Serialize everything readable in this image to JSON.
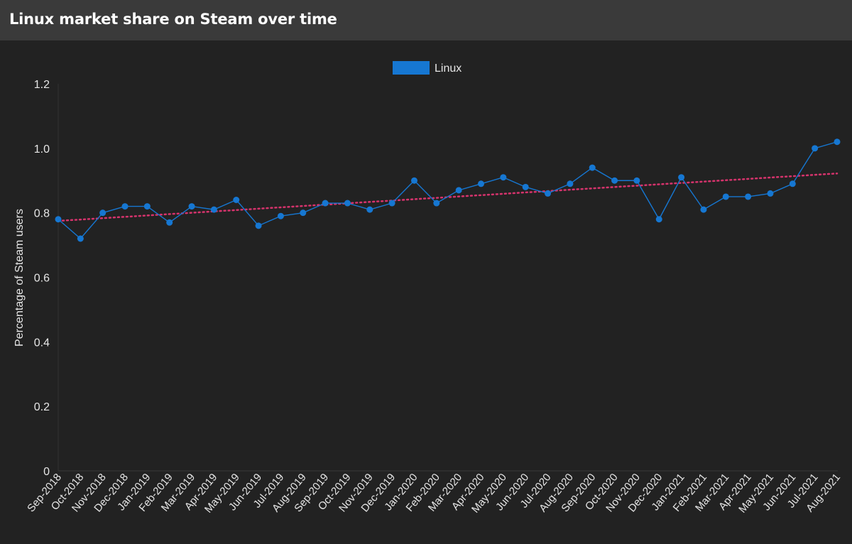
{
  "header": {
    "title": "Linux market share on Steam over time"
  },
  "colors": {
    "background": "#222222",
    "header_background": "#3a3a3a",
    "series": "#1677d2",
    "trendline": "#d6336c",
    "text": "#e6e6e6"
  },
  "chart_data": {
    "type": "line",
    "ylabel": "Percentage of Steam users",
    "xlabel": "",
    "ylim": [
      0,
      1.2
    ],
    "yticks": [
      "0",
      "0.2",
      "0.4",
      "0.6",
      "0.8",
      "1.0",
      "1.2"
    ],
    "legend_position": "top-center",
    "grid": false,
    "categories": [
      "Sep-2018",
      "Oct-2018",
      "Nov-2018",
      "Dec-2018",
      "Jan-2019",
      "Feb-2019",
      "Mar-2019",
      "Apr-2019",
      "May-2019",
      "Jun-2019",
      "Jul-2019",
      "Aug-2019",
      "Sep-2019",
      "Oct-2019",
      "Nov-2019",
      "Dec-2019",
      "Jan-2020",
      "Feb-2020",
      "Mar-2020",
      "Apr-2020",
      "May-2020",
      "Jun-2020",
      "Jul-2020",
      "Aug-2020",
      "Sep-2020",
      "Oct-2020",
      "Nov-2020",
      "Dec-2020",
      "Jan-2021",
      "Feb-2021",
      "Mar-2021",
      "Apr-2021",
      "May-2021",
      "Jun-2021",
      "Jul-2021",
      "Aug-2021"
    ],
    "series": [
      {
        "name": "Linux",
        "values": [
          0.78,
          0.72,
          0.8,
          0.82,
          0.82,
          0.77,
          0.82,
          0.81,
          0.84,
          0.76,
          0.79,
          0.8,
          0.83,
          0.83,
          0.81,
          0.83,
          0.9,
          0.83,
          0.87,
          0.89,
          0.91,
          0.88,
          0.86,
          0.89,
          0.94,
          0.9,
          0.9,
          0.78,
          0.91,
          0.81,
          0.85,
          0.85,
          0.86,
          0.89,
          1.0,
          1.02
        ]
      }
    ],
    "trendline": {
      "style": "dotted",
      "start": 0.775,
      "end": 0.922
    }
  }
}
